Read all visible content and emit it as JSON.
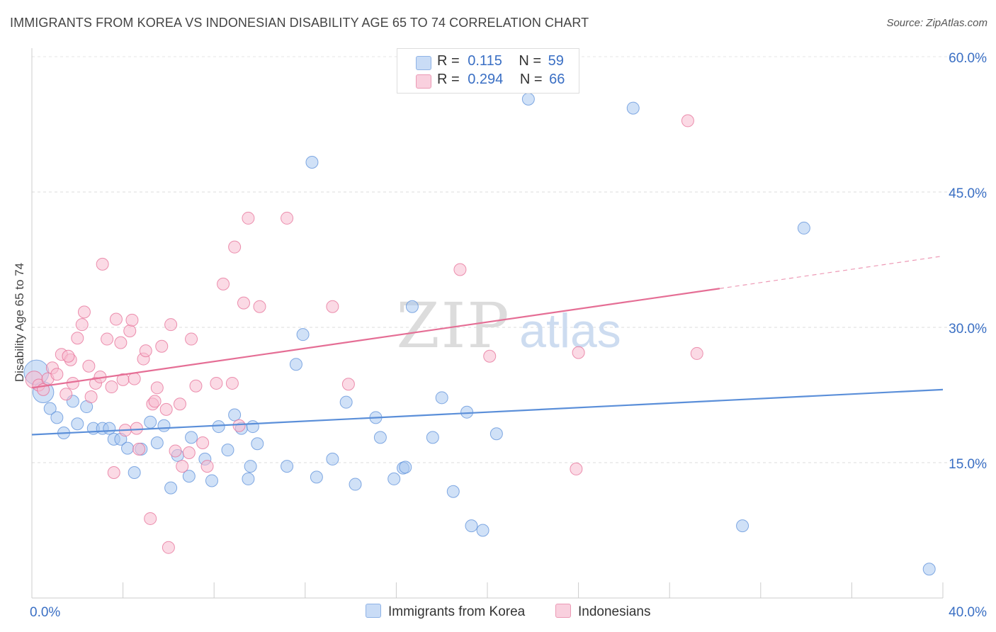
{
  "title": "IMMIGRANTS FROM KOREA VS INDONESIAN DISABILITY AGE 65 TO 74 CORRELATION CHART",
  "source": "Source: ZipAtlas.com",
  "watermark": {
    "zip": "ZIP",
    "atlas": "atlas"
  },
  "legend": {
    "rows": [
      {
        "r_label": "R =",
        "r_value": "0.115",
        "n_label": "N =",
        "n_value": "59",
        "color": "#aac8f0"
      },
      {
        "r_label": "R =",
        "r_value": "0.294",
        "n_label": "N =",
        "n_value": "66",
        "color": "#f7bcd0"
      }
    ]
  },
  "bottom_legend": [
    {
      "label": "Immigrants from Korea",
      "color": "#aac8f0"
    },
    {
      "label": "Indonesians",
      "color": "#f7bcd0"
    }
  ],
  "chart_data": {
    "type": "scatter",
    "title": "IMMIGRANTS FROM KOREA VS INDONESIAN DISABILITY AGE 65 TO 74 CORRELATION CHART",
    "xlabel": "",
    "ylabel": "Disability Age 65 to 74",
    "xlim": [
      0,
      40
    ],
    "ylim": [
      0,
      60
    ],
    "x_tick_labels": [
      "0.0%",
      "40.0%"
    ],
    "y_ticks": [
      15,
      30,
      45,
      60
    ],
    "y_tick_labels": [
      "15.0%",
      "30.0%",
      "45.0%",
      "60.0%"
    ],
    "grid": true,
    "series": [
      {
        "name": "Immigrants from Korea",
        "color": "#5b8fd9",
        "fill": "#aac8f0",
        "trend": {
          "x": [
            0,
            40
          ],
          "y": [
            18.1,
            23.1
          ]
        },
        "points": [
          [
            0.2,
            25,
            1
          ],
          [
            0.5,
            22.8,
            0.7
          ],
          [
            0.8,
            21,
            0
          ],
          [
            1.1,
            20,
            0
          ],
          [
            1.4,
            18.3,
            0
          ],
          [
            1.8,
            21.8,
            0
          ],
          [
            2.0,
            19.3,
            0
          ],
          [
            2.4,
            21.2,
            0
          ],
          [
            2.7,
            18.8,
            0
          ],
          [
            3.1,
            18.8,
            0
          ],
          [
            3.4,
            18.8,
            0
          ],
          [
            3.6,
            17.6,
            0
          ],
          [
            3.9,
            17.6,
            0
          ],
          [
            4.2,
            16.6,
            0
          ],
          [
            4.5,
            13.9,
            0
          ],
          [
            4.8,
            16.5,
            0
          ],
          [
            5.2,
            19.5,
            0
          ],
          [
            5.5,
            17.2,
            0
          ],
          [
            5.8,
            19.1,
            0
          ],
          [
            6.1,
            12.2,
            0
          ],
          [
            6.4,
            15.8,
            0
          ],
          [
            6.9,
            13.5,
            0
          ],
          [
            7.0,
            17.8,
            0
          ],
          [
            7.6,
            15.4,
            0
          ],
          [
            7.9,
            13.0,
            0
          ],
          [
            8.2,
            19.0,
            0
          ],
          [
            8.6,
            16.4,
            0
          ],
          [
            8.9,
            20.3,
            0
          ],
          [
            9.2,
            18.8,
            0
          ],
          [
            9.5,
            13.2,
            0
          ],
          [
            9.9,
            17.1,
            0
          ],
          [
            11.2,
            14.6,
            0
          ],
          [
            11.6,
            25.9,
            0
          ],
          [
            11.9,
            29.2,
            0
          ],
          [
            12.3,
            48.3,
            0
          ],
          [
            12.5,
            13.4,
            0
          ],
          [
            13.2,
            15.4,
            0
          ],
          [
            13.8,
            21.7,
            0
          ],
          [
            14.2,
            12.6,
            0
          ],
          [
            15.1,
            20.0,
            0
          ],
          [
            15.3,
            17.8,
            0
          ],
          [
            15.9,
            13.2,
            0
          ],
          [
            16.3,
            14.4,
            0
          ],
          [
            16.4,
            14.5,
            0
          ],
          [
            16.7,
            32.3,
            0
          ],
          [
            17.6,
            17.8,
            0
          ],
          [
            18.0,
            22.2,
            0
          ],
          [
            18.5,
            11.8,
            0
          ],
          [
            19.1,
            20.6,
            0
          ],
          [
            19.3,
            8.0,
            0
          ],
          [
            19.8,
            7.5,
            0
          ],
          [
            20.4,
            18.2,
            0
          ],
          [
            21.8,
            55.3,
            0
          ],
          [
            9.6,
            14.6,
            0
          ],
          [
            9.7,
            19.0,
            0
          ],
          [
            26.4,
            54.3,
            0
          ],
          [
            31.2,
            8.0,
            0
          ],
          [
            33.9,
            41.0,
            0
          ],
          [
            39.4,
            3.2,
            0
          ]
        ]
      },
      {
        "name": "Indonesians",
        "color": "#e56e95",
        "fill": "#f7bcd0",
        "trend": {
          "x": [
            0,
            30.2
          ],
          "y": [
            23.3,
            34.3
          ]
        },
        "trend_dashed": {
          "x": [
            30.2,
            40
          ],
          "y": [
            34.3,
            37.9
          ]
        },
        "points": [
          [
            0.1,
            24.2,
            0.4
          ],
          [
            0.3,
            23.6,
            0
          ],
          [
            0.5,
            23.1,
            0
          ],
          [
            0.7,
            24.3,
            0
          ],
          [
            0.9,
            25.5,
            0
          ],
          [
            1.1,
            24.8,
            0
          ],
          [
            1.3,
            27.0,
            0
          ],
          [
            1.5,
            22.6,
            0
          ],
          [
            1.7,
            26.4,
            0
          ],
          [
            1.8,
            23.8,
            0
          ],
          [
            2.0,
            28.8,
            0
          ],
          [
            2.2,
            30.3,
            0
          ],
          [
            2.3,
            31.7,
            0
          ],
          [
            2.5,
            25.7,
            0
          ],
          [
            2.6,
            22.3,
            0
          ],
          [
            2.8,
            23.8,
            0
          ],
          [
            3.0,
            24.5,
            0
          ],
          [
            3.1,
            37.0,
            0
          ],
          [
            3.3,
            28.7,
            0
          ],
          [
            3.5,
            23.4,
            0
          ],
          [
            3.6,
            13.9,
            0
          ],
          [
            3.7,
            30.9,
            0
          ],
          [
            3.9,
            28.3,
            0
          ],
          [
            4.0,
            24.2,
            0
          ],
          [
            4.1,
            18.6,
            0
          ],
          [
            4.3,
            29.6,
            0
          ],
          [
            4.4,
            30.8,
            0
          ],
          [
            4.5,
            24.3,
            0
          ],
          [
            4.7,
            16.5,
            0
          ],
          [
            4.9,
            26.5,
            0
          ],
          [
            5.0,
            27.4,
            0
          ],
          [
            5.2,
            8.8,
            0
          ],
          [
            5.3,
            21.5,
            0
          ],
          [
            5.4,
            21.8,
            0
          ],
          [
            5.5,
            23.3,
            0
          ],
          [
            5.7,
            27.9,
            0
          ],
          [
            5.9,
            20.9,
            0
          ],
          [
            6.0,
            5.6,
            0
          ],
          [
            6.1,
            30.3,
            0
          ],
          [
            6.3,
            16.3,
            0
          ],
          [
            6.5,
            21.5,
            0
          ],
          [
            6.6,
            14.6,
            0
          ],
          [
            6.9,
            16.1,
            0
          ],
          [
            7.0,
            28.7,
            0
          ],
          [
            7.2,
            23.5,
            0
          ],
          [
            7.5,
            17.2,
            0
          ],
          [
            7.7,
            14.6,
            0
          ],
          [
            8.1,
            23.8,
            0
          ],
          [
            8.4,
            34.8,
            0
          ],
          [
            8.8,
            23.8,
            0
          ],
          [
            8.9,
            38.9,
            0
          ],
          [
            9.1,
            19.1,
            0
          ],
          [
            9.3,
            32.7,
            0
          ],
          [
            9.5,
            42.1,
            0
          ],
          [
            10.0,
            32.3,
            0
          ],
          [
            11.2,
            42.1,
            0
          ],
          [
            13.2,
            32.3,
            0
          ],
          [
            13.9,
            23.7,
            0
          ],
          [
            18.8,
            36.4,
            0
          ],
          [
            20.1,
            26.8,
            0
          ],
          [
            23.9,
            14.3,
            0
          ],
          [
            24.0,
            27.2,
            0
          ],
          [
            28.8,
            52.9,
            0
          ],
          [
            29.2,
            27.1,
            0
          ],
          [
            4.6,
            18.8,
            0
          ],
          [
            1.6,
            26.8,
            0
          ]
        ]
      }
    ]
  }
}
